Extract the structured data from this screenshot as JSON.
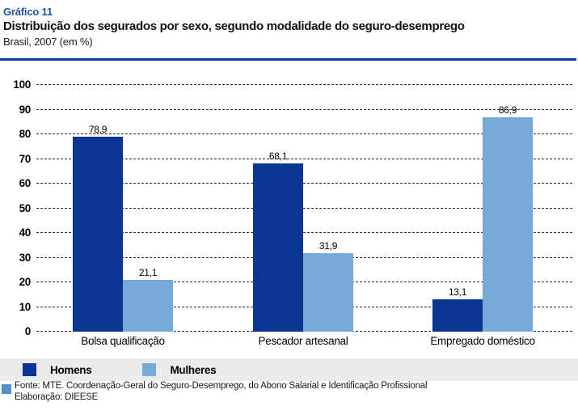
{
  "header": {
    "kicker": "Gráfico 11",
    "title": "Distribuição dos segurados por sexo, segundo modalidade do seguro-desemprego",
    "subtitle": "Brasil, 2007 (em %)"
  },
  "chart_data": {
    "type": "bar",
    "title": "Distribuição dos segurados por sexo, segundo modalidade do seguro-desemprego",
    "subtitle": "Brasil, 2007 (em %)",
    "categories": [
      "Bolsa qualificação",
      "Pescador artesanal",
      "Empregado doméstico"
    ],
    "series": [
      {
        "name": "Homens",
        "color": "#0a3595",
        "values": [
          78.9,
          68.1,
          13.1
        ],
        "value_labels": [
          "78,9",
          "68,1",
          "13,1"
        ]
      },
      {
        "name": "Mulheres",
        "color": "#74a9d8",
        "values": [
          21.1,
          31.9,
          86.9
        ],
        "value_labels": [
          "21,1",
          "31,9",
          "86,9"
        ]
      }
    ],
    "ylim": [
      0,
      100
    ],
    "yticks": [
      0,
      10,
      20,
      30,
      40,
      50,
      60,
      70,
      80,
      90,
      100
    ],
    "grid": "horizontal-dotted",
    "legend_position": "bottom"
  },
  "footer": {
    "source": "Fonte: MTE. Coordenação-Geral do Seguro-Desemprego, do Abono Salarial e Identificação Profissional",
    "elaboration": "Elaboração: DIEESE"
  },
  "colors": {
    "kicker_blue": "#1e55a8",
    "rule_blue": "#0b3b9e",
    "homens_bar": "#0a3595",
    "mulheres_bar": "#74a9d8",
    "legend_band_bg": "#ebebeb",
    "footer_bullet": "#4f93ca",
    "gridline": "#2d2d2d"
  }
}
